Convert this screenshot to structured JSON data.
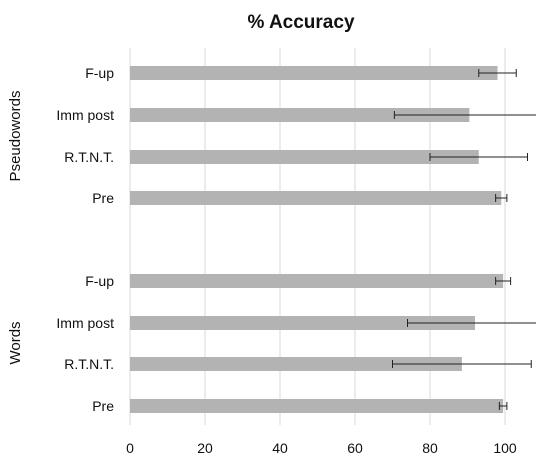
{
  "chart_data": {
    "type": "bar",
    "orientation": "horizontal",
    "title": "% Accuracy",
    "xlim": [
      0,
      100
    ],
    "x_ticks": [
      "0",
      "20",
      "40",
      "60",
      "80",
      "100"
    ],
    "grid": true,
    "colors": {
      "bar": "#b3b3b3",
      "grid": "#d9d9d9",
      "error": "#222222"
    },
    "groups": [
      {
        "label": "Pseudowords",
        "categories": [
          "F-up",
          "Imm post",
          "R.T.N.T.",
          "Pre"
        ],
        "values": [
          98,
          90.5,
          93,
          99
        ],
        "error": [
          5,
          20,
          13,
          1.5
        ]
      },
      {
        "label": "Words",
        "categories": [
          "F-up",
          "Imm post",
          "R.T.N.T.",
          "Pre"
        ],
        "values": [
          99.5,
          92,
          88.5,
          99.5
        ],
        "error": [
          2,
          18,
          18.5,
          1
        ]
      }
    ]
  }
}
